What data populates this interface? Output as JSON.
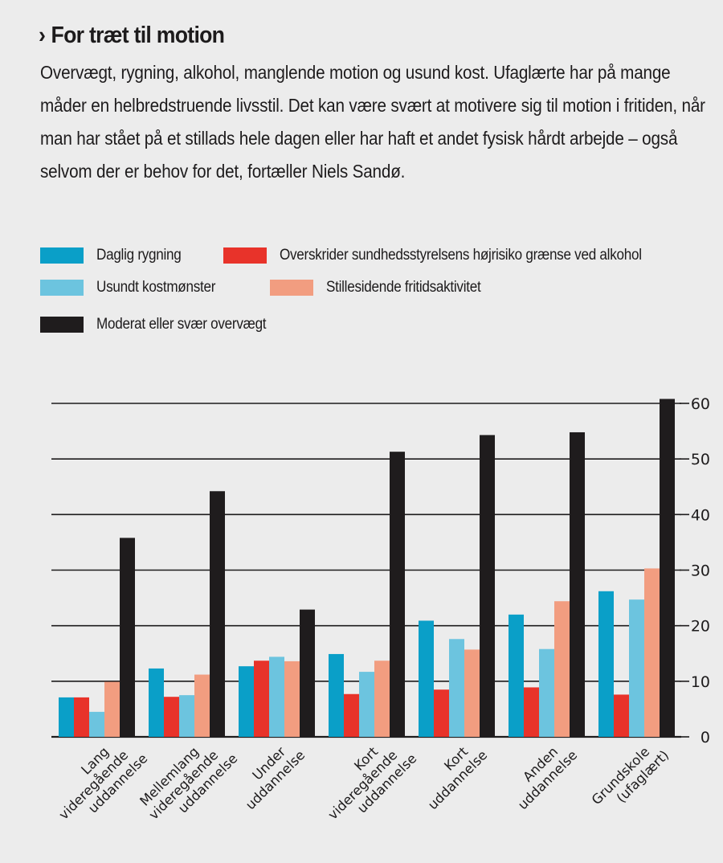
{
  "header": {
    "chevron": "›",
    "title": "For træt til motion",
    "body": "Overvægt, rygning, alkohol, manglende motion og usund kost. Ufaglærte har på mange måder en helbredstruende livsstil. Det kan være svært at motivere sig til motion i fritiden, når man har stået på et stillads hele dagen eller har haft et andet fysisk hårdt arbejde – også selvom der er behov for det, fortæller Niels Sandø."
  },
  "legend": [
    {
      "label": "Daglig rygning",
      "color": "#0a9fc8"
    },
    {
      "label": "Overskrider sundhedsstyrelsens højrisiko grænse ved alkohol",
      "color": "#e8332a"
    },
    {
      "label": "Usundt kostmønster",
      "color": "#6cc4df"
    },
    {
      "label": "Stillesidende fritidsaktivitet",
      "color": "#f29d80"
    },
    {
      "label": "Moderat eller svær overvægt",
      "color": "#1f1c1d"
    }
  ],
  "chart_data": {
    "type": "bar",
    "title": "",
    "xlabel": "",
    "ylabel": "",
    "ylim": [
      0,
      60
    ],
    "yticks": [
      0,
      10,
      20,
      30,
      40,
      50,
      60
    ],
    "y_axis_side": "right",
    "grid": true,
    "legend_position": "top",
    "categories": [
      [
        "Lang",
        "videregående",
        "uddannelse"
      ],
      [
        "Mellemlang",
        "videregående",
        "uddannelse"
      ],
      [
        "Under",
        "uddannelse"
      ],
      [
        "Kort",
        "videregående",
        "uddannelse"
      ],
      [
        "Kort",
        "uddannelse"
      ],
      [
        "Anden",
        "uddannelse"
      ],
      [
        "Grundskole",
        "(ufaglært)"
      ]
    ],
    "series": [
      {
        "name": "Daglig rygning",
        "color": "#0a9fc8",
        "values": [
          7.1,
          12.3,
          12.7,
          14.9,
          20.9,
          22.0,
          26.2
        ]
      },
      {
        "name": "Overskrider sundhedsstyrelsens højrisiko grænse ved alkohol",
        "color": "#e8332a",
        "values": [
          7.1,
          7.2,
          13.7,
          7.7,
          8.5,
          8.9,
          7.6
        ]
      },
      {
        "name": "Usundt kostmønster",
        "color": "#6cc4df",
        "values": [
          4.5,
          7.5,
          14.4,
          11.7,
          17.6,
          15.8,
          24.7
        ]
      },
      {
        "name": "Stillesidende fritidsaktivitet",
        "color": "#f29d80",
        "values": [
          9.9,
          11.2,
          13.6,
          13.7,
          15.7,
          24.4,
          30.3
        ]
      },
      {
        "name": "Moderat eller svær overvægt",
        "color": "#1f1c1d",
        "values": [
          35.8,
          44.2,
          22.9,
          51.3,
          54.3,
          54.8,
          60.8
        ]
      }
    ]
  }
}
